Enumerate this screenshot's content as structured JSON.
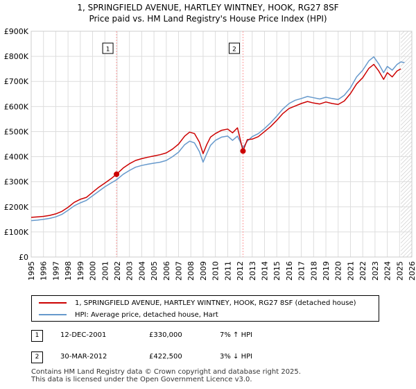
{
  "chart_data": {
    "type": "line",
    "title": "1, SPRINGFIELD AVENUE, HARTLEY WINTNEY, HOOK, RG27 8SF",
    "subtitle": "Price paid vs. HM Land Registry's House Price Index (HPI)",
    "xlim": [
      1995,
      2026
    ],
    "ylim": [
      0,
      900000
    ],
    "y_ticks": [
      {
        "value": 0,
        "label": "£0"
      },
      {
        "value": 100000,
        "label": "£100K"
      },
      {
        "value": 200000,
        "label": "£200K"
      },
      {
        "value": 300000,
        "label": "£300K"
      },
      {
        "value": 400000,
        "label": "£400K"
      },
      {
        "value": 500000,
        "label": "£500K"
      },
      {
        "value": 600000,
        "label": "£600K"
      },
      {
        "value": 700000,
        "label": "£700K"
      },
      {
        "value": 800000,
        "label": "£800K"
      },
      {
        "value": 900000,
        "label": "£900K"
      }
    ],
    "x_ticks": [
      "1995",
      "1996",
      "1997",
      "1998",
      "1999",
      "2000",
      "2001",
      "2002",
      "2003",
      "2004",
      "2005",
      "2006",
      "2007",
      "2008",
      "2009",
      "2010",
      "2011",
      "2012",
      "2013",
      "2014",
      "2015",
      "2016",
      "2017",
      "2018",
      "2019",
      "2020",
      "2021",
      "2022",
      "2023",
      "2024",
      "2025",
      "2026"
    ],
    "grid": true,
    "forecast_start": 2025.1,
    "series": [
      {
        "name": "1, SPRINGFIELD AVENUE, HARTLEY WINTNEY, HOOK, RG27 8SF (detached house)",
        "color": "#cc0000",
        "x": [
          1995.0,
          1995.5,
          1996.0,
          1996.5,
          1997.0,
          1997.5,
          1998.0,
          1998.5,
          1999.0,
          1999.5,
          2000.0,
          2000.5,
          2001.0,
          2001.5,
          2001.95,
          2002.5,
          2003.0,
          2003.5,
          2004.0,
          2004.5,
          2005.0,
          2005.5,
          2006.0,
          2006.5,
          2007.0,
          2007.5,
          2007.9,
          2008.3,
          2008.7,
          2009.0,
          2009.3,
          2009.6,
          2010.0,
          2010.5,
          2011.0,
          2011.4,
          2011.8,
          2012.25,
          2012.6,
          2013.0,
          2013.5,
          2014.0,
          2014.5,
          2015.0,
          2015.5,
          2016.0,
          2016.5,
          2017.0,
          2017.5,
          2018.0,
          2018.5,
          2019.0,
          2019.5,
          2020.0,
          2020.5,
          2021.0,
          2021.5,
          2022.0,
          2022.5,
          2022.9,
          2023.3,
          2023.7,
          2024.0,
          2024.4,
          2024.8,
          2025.1
        ],
        "values": [
          158000,
          160000,
          162000,
          166000,
          172000,
          182000,
          198000,
          218000,
          230000,
          238000,
          258000,
          278000,
          295000,
          312000,
          330000,
          355000,
          372000,
          385000,
          392000,
          398000,
          403000,
          408000,
          415000,
          430000,
          450000,
          482000,
          498000,
          492000,
          458000,
          412000,
          448000,
          478000,
          492000,
          505000,
          510000,
          495000,
          515000,
          422500,
          468000,
          470000,
          480000,
          500000,
          520000,
          545000,
          572000,
          592000,
          602000,
          612000,
          620000,
          614000,
          610000,
          618000,
          612000,
          608000,
          622000,
          652000,
          690000,
          715000,
          752000,
          768000,
          742000,
          708000,
          735000,
          718000,
          742000,
          750000
        ]
      },
      {
        "name": "HPI: Average price, detached house, Hart",
        "color": "#6699cc",
        "x": [
          1995.0,
          1995.5,
          1996.0,
          1996.5,
          1997.0,
          1997.5,
          1998.0,
          1998.5,
          1999.0,
          1999.5,
          2000.0,
          2000.5,
          2001.0,
          2001.5,
          2001.95,
          2002.5,
          2003.0,
          2003.5,
          2004.0,
          2004.5,
          2005.0,
          2005.5,
          2006.0,
          2006.5,
          2007.0,
          2007.5,
          2007.9,
          2008.3,
          2008.7,
          2009.0,
          2009.3,
          2009.6,
          2010.0,
          2010.5,
          2011.0,
          2011.4,
          2011.8,
          2012.25,
          2012.6,
          2013.0,
          2013.5,
          2014.0,
          2014.5,
          2015.0,
          2015.5,
          2016.0,
          2016.5,
          2017.0,
          2017.5,
          2018.0,
          2018.5,
          2019.0,
          2019.5,
          2020.0,
          2020.5,
          2021.0,
          2021.5,
          2022.0,
          2022.5,
          2022.9,
          2023.3,
          2023.7,
          2024.0,
          2024.4,
          2024.8,
          2025.1,
          2025.4
        ],
        "values": [
          145000,
          147000,
          150000,
          154000,
          160000,
          170000,
          186000,
          204000,
          216000,
          226000,
          244000,
          262000,
          280000,
          295000,
          308000,
          330000,
          345000,
          358000,
          365000,
          370000,
          374000,
          378000,
          385000,
          400000,
          418000,
          448000,
          462000,
          455000,
          420000,
          378000,
          412000,
          445000,
          465000,
          478000,
          482000,
          465000,
          482000,
          436000,
          462000,
          480000,
          492000,
          512000,
          535000,
          562000,
          590000,
          612000,
          625000,
          632000,
          640000,
          635000,
          630000,
          637000,
          632000,
          628000,
          645000,
          675000,
          718000,
          745000,
          782000,
          798000,
          770000,
          735000,
          760000,
          745000,
          768000,
          778000,
          775000
        ]
      }
    ],
    "annotations": [
      {
        "label": "1",
        "x": 2001.95,
        "y": 330000
      },
      {
        "label": "2",
        "x": 2012.25,
        "y": 422500
      }
    ]
  },
  "legend": {
    "property_label": "1, SPRINGFIELD AVENUE, HARTLEY WINTNEY, HOOK, RG27 8SF (detached house)",
    "hpi_label": "HPI: Average price, detached house, Hart"
  },
  "transactions": [
    {
      "num": "1",
      "date": "12-DEC-2001",
      "price": "£330,000",
      "change": "7% ↑ HPI"
    },
    {
      "num": "2",
      "date": "30-MAR-2012",
      "price": "£422,500",
      "change": "3% ↓ HPI"
    }
  ],
  "footer": {
    "line1": "Contains HM Land Registry data © Crown copyright and database right 2025.",
    "line2": "This data is licensed under the Open Government Licence v3.0."
  },
  "colors": {
    "property": "#cc0000",
    "hpi": "#6699cc",
    "grid": "#dddddd",
    "annotation_line": "#ff9999"
  }
}
